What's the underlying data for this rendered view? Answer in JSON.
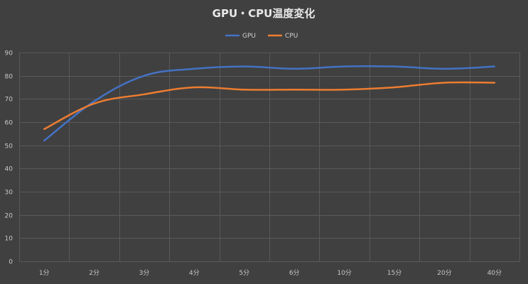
{
  "chart_data": {
    "type": "line",
    "title": "GPU・CPU温度変化",
    "xlabel": "",
    "ylabel": "",
    "categories": [
      "1分",
      "2分",
      "3分",
      "4分",
      "5分",
      "6分",
      "10分",
      "15分",
      "20分",
      "40分"
    ],
    "ylim": [
      0,
      90
    ],
    "yticks": [
      0,
      10,
      20,
      30,
      40,
      50,
      60,
      70,
      80,
      90
    ],
    "grid": true,
    "legend_position": "top-center",
    "series": [
      {
        "name": "GPU",
        "color": "#4472c4",
        "values": [
          52,
          69,
          80,
          83,
          84,
          83,
          84,
          84,
          83,
          84
        ]
      },
      {
        "name": "CPU",
        "color": "#ed7d31",
        "values": [
          57,
          68,
          72,
          75,
          74,
          74,
          74,
          75,
          77,
          77
        ]
      }
    ]
  },
  "colors": {
    "background": "#404040",
    "gridline": "#595959",
    "text": "#d0d0d0"
  }
}
